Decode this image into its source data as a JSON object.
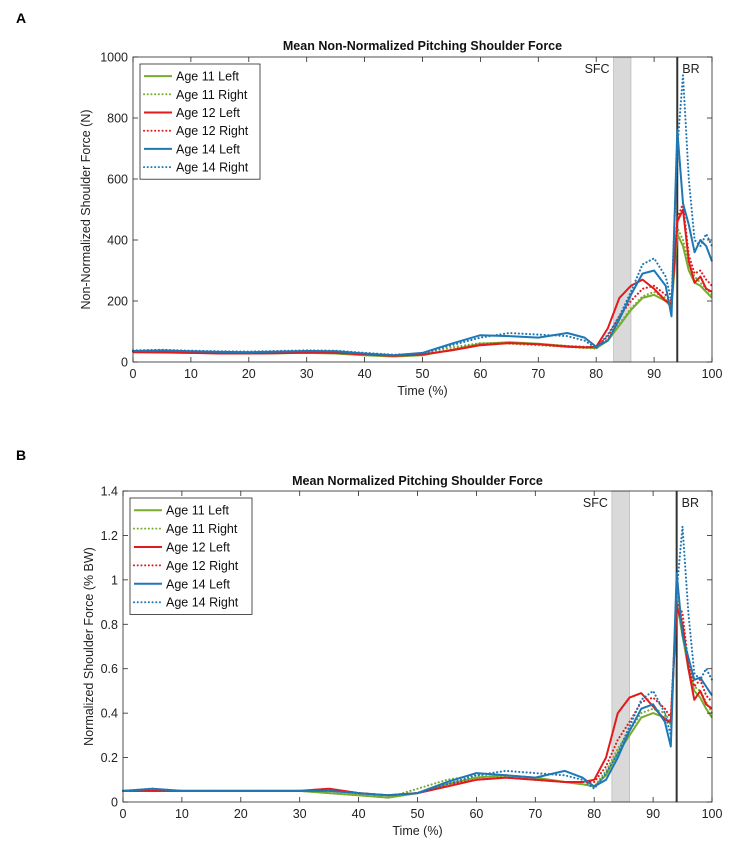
{
  "chart_data": [
    {
      "panel": "A",
      "type": "line",
      "title": "Mean Non-Normalized Pitching Shoulder Force",
      "xlabel": "Time (%)",
      "ylabel": "Non-Normalized Shoulder Force (N)",
      "xlim": [
        0,
        100
      ],
      "ylim": [
        0,
        1000
      ],
      "xticks": [
        0,
        10,
        20,
        30,
        40,
        50,
        60,
        70,
        80,
        90,
        100
      ],
      "yticks": [
        0,
        200,
        400,
        600,
        800,
        1000
      ],
      "grid": false,
      "legend": "top-left",
      "annotations": [
        {
          "label": "SFC",
          "type": "band",
          "x_range": [
            83,
            86
          ]
        },
        {
          "label": "BR",
          "type": "vline",
          "x": 94
        }
      ],
      "x": [
        0,
        5,
        10,
        15,
        20,
        25,
        30,
        35,
        40,
        45,
        50,
        55,
        60,
        65,
        70,
        75,
        78,
        80,
        82,
        84,
        86,
        88,
        90,
        92,
        93,
        94,
        95,
        96,
        97,
        98,
        99,
        100
      ],
      "series": [
        {
          "name": "Age 11 Left",
          "color": "#77ac30",
          "dash": "solid",
          "values": [
            33,
            32,
            30,
            29,
            28,
            29,
            30,
            28,
            22,
            18,
            22,
            40,
            60,
            65,
            60,
            52,
            48,
            45,
            70,
            120,
            170,
            210,
            220,
            200,
            180,
            420,
            380,
            300,
            260,
            250,
            230,
            210
          ]
        },
        {
          "name": "Age 11 Right",
          "color": "#77ac30",
          "dash": "dotted",
          "values": [
            35,
            33,
            31,
            30,
            29,
            30,
            31,
            28,
            22,
            19,
            30,
            48,
            62,
            60,
            55,
            50,
            46,
            44,
            75,
            125,
            175,
            215,
            230,
            210,
            190,
            440,
            400,
            320,
            280,
            260,
            240,
            220
          ]
        },
        {
          "name": "Age 12 Left",
          "color": "#e31a1c",
          "dash": "solid",
          "values": [
            32,
            31,
            30,
            28,
            28,
            29,
            31,
            30,
            25,
            20,
            25,
            38,
            55,
            62,
            58,
            50,
            48,
            50,
            110,
            210,
            250,
            270,
            240,
            200,
            190,
            460,
            500,
            330,
            260,
            280,
            240,
            230
          ]
        },
        {
          "name": "Age 12 Right",
          "color": "#e31a1c",
          "dash": "dotted",
          "values": [
            34,
            32,
            31,
            29,
            29,
            30,
            32,
            31,
            26,
            21,
            24,
            40,
            57,
            63,
            58,
            52,
            50,
            48,
            85,
            150,
            200,
            240,
            250,
            220,
            200,
            470,
            520,
            350,
            290,
            300,
            270,
            250
          ]
        },
        {
          "name": "Age 14 Left",
          "color": "#1f77b4",
          "dash": "solid",
          "values": [
            36,
            38,
            35,
            33,
            32,
            34,
            36,
            35,
            28,
            22,
            30,
            60,
            88,
            85,
            80,
            95,
            80,
            50,
            70,
            140,
            220,
            290,
            300,
            250,
            150,
            760,
            520,
            450,
            360,
            400,
            380,
            330
          ]
        },
        {
          "name": "Age 14 Right",
          "color": "#1f77b4",
          "dash": "dotted",
          "values": [
            38,
            40,
            37,
            35,
            34,
            36,
            38,
            37,
            30,
            24,
            28,
            55,
            80,
            95,
            90,
            85,
            70,
            45,
            90,
            150,
            230,
            320,
            340,
            280,
            200,
            700,
            940,
            600,
            400,
            380,
            420,
            380
          ]
        }
      ]
    },
    {
      "panel": "B",
      "type": "line",
      "title": "Mean Normalized Pitching Shoulder Force",
      "xlabel": "Time (%)",
      "ylabel": "Normalized Shoulder Force (% BW)",
      "xlim": [
        0,
        100
      ],
      "ylim": [
        0,
        1.4
      ],
      "xticks": [
        0,
        10,
        20,
        30,
        40,
        50,
        60,
        70,
        80,
        90,
        100
      ],
      "yticks": [
        0,
        0.2,
        0.4,
        0.6,
        0.8,
        1,
        1.2,
        1.4
      ],
      "grid": false,
      "legend": "top-left",
      "annotations": [
        {
          "label": "SFC",
          "type": "band",
          "x_range": [
            83,
            86
          ]
        },
        {
          "label": "BR",
          "type": "vline",
          "x": 94
        }
      ],
      "x": [
        0,
        5,
        10,
        15,
        20,
        25,
        30,
        35,
        40,
        45,
        50,
        55,
        60,
        65,
        70,
        75,
        78,
        80,
        82,
        84,
        86,
        88,
        90,
        92,
        93,
        94,
        95,
        96,
        97,
        98,
        99,
        100
      ],
      "series": [
        {
          "name": "Age 11 Left",
          "color": "#77ac30",
          "dash": "solid",
          "values": [
            0.05,
            0.05,
            0.05,
            0.05,
            0.05,
            0.05,
            0.05,
            0.04,
            0.03,
            0.02,
            0.04,
            0.08,
            0.11,
            0.12,
            0.11,
            0.09,
            0.08,
            0.07,
            0.12,
            0.22,
            0.3,
            0.38,
            0.4,
            0.38,
            0.35,
            0.9,
            0.75,
            0.6,
            0.5,
            0.47,
            0.42,
            0.38
          ]
        },
        {
          "name": "Age 11 Right",
          "color": "#77ac30",
          "dash": "dotted",
          "values": [
            0.05,
            0.05,
            0.05,
            0.05,
            0.05,
            0.05,
            0.05,
            0.04,
            0.03,
            0.02,
            0.06,
            0.1,
            0.12,
            0.11,
            0.1,
            0.09,
            0.08,
            0.07,
            0.14,
            0.24,
            0.32,
            0.4,
            0.42,
            0.4,
            0.36,
            0.95,
            0.8,
            0.62,
            0.52,
            0.5,
            0.45,
            0.4
          ]
        },
        {
          "name": "Age 12 Left",
          "color": "#e31a1c",
          "dash": "solid",
          "values": [
            0.05,
            0.05,
            0.05,
            0.05,
            0.05,
            0.05,
            0.05,
            0.06,
            0.04,
            0.03,
            0.04,
            0.07,
            0.1,
            0.11,
            0.1,
            0.09,
            0.09,
            0.1,
            0.2,
            0.4,
            0.47,
            0.49,
            0.43,
            0.37,
            0.36,
            0.88,
            0.8,
            0.6,
            0.46,
            0.5,
            0.44,
            0.42
          ]
        },
        {
          "name": "Age 12 Right",
          "color": "#e31a1c",
          "dash": "dotted",
          "values": [
            0.05,
            0.05,
            0.05,
            0.05,
            0.05,
            0.05,
            0.05,
            0.06,
            0.04,
            0.03,
            0.04,
            0.08,
            0.1,
            0.11,
            0.1,
            0.09,
            0.09,
            0.09,
            0.16,
            0.28,
            0.36,
            0.45,
            0.47,
            0.42,
            0.38,
            0.9,
            0.85,
            0.62,
            0.52,
            0.55,
            0.48,
            0.45
          ]
        },
        {
          "name": "Age 14 Left",
          "color": "#1f77b4",
          "dash": "solid",
          "values": [
            0.05,
            0.06,
            0.05,
            0.05,
            0.05,
            0.05,
            0.05,
            0.05,
            0.04,
            0.03,
            0.04,
            0.09,
            0.13,
            0.12,
            0.11,
            0.14,
            0.11,
            0.07,
            0.1,
            0.2,
            0.32,
            0.42,
            0.44,
            0.36,
            0.25,
            1.03,
            0.75,
            0.65,
            0.55,
            0.56,
            0.52,
            0.48
          ]
        },
        {
          "name": "Age 14 Right",
          "color": "#1f77b4",
          "dash": "dotted",
          "values": [
            0.05,
            0.06,
            0.05,
            0.05,
            0.05,
            0.05,
            0.05,
            0.05,
            0.04,
            0.03,
            0.04,
            0.08,
            0.12,
            0.14,
            0.13,
            0.12,
            0.1,
            0.06,
            0.13,
            0.22,
            0.34,
            0.46,
            0.5,
            0.4,
            0.3,
            0.95,
            1.24,
            0.85,
            0.58,
            0.55,
            0.6,
            0.55
          ]
        }
      ]
    }
  ]
}
